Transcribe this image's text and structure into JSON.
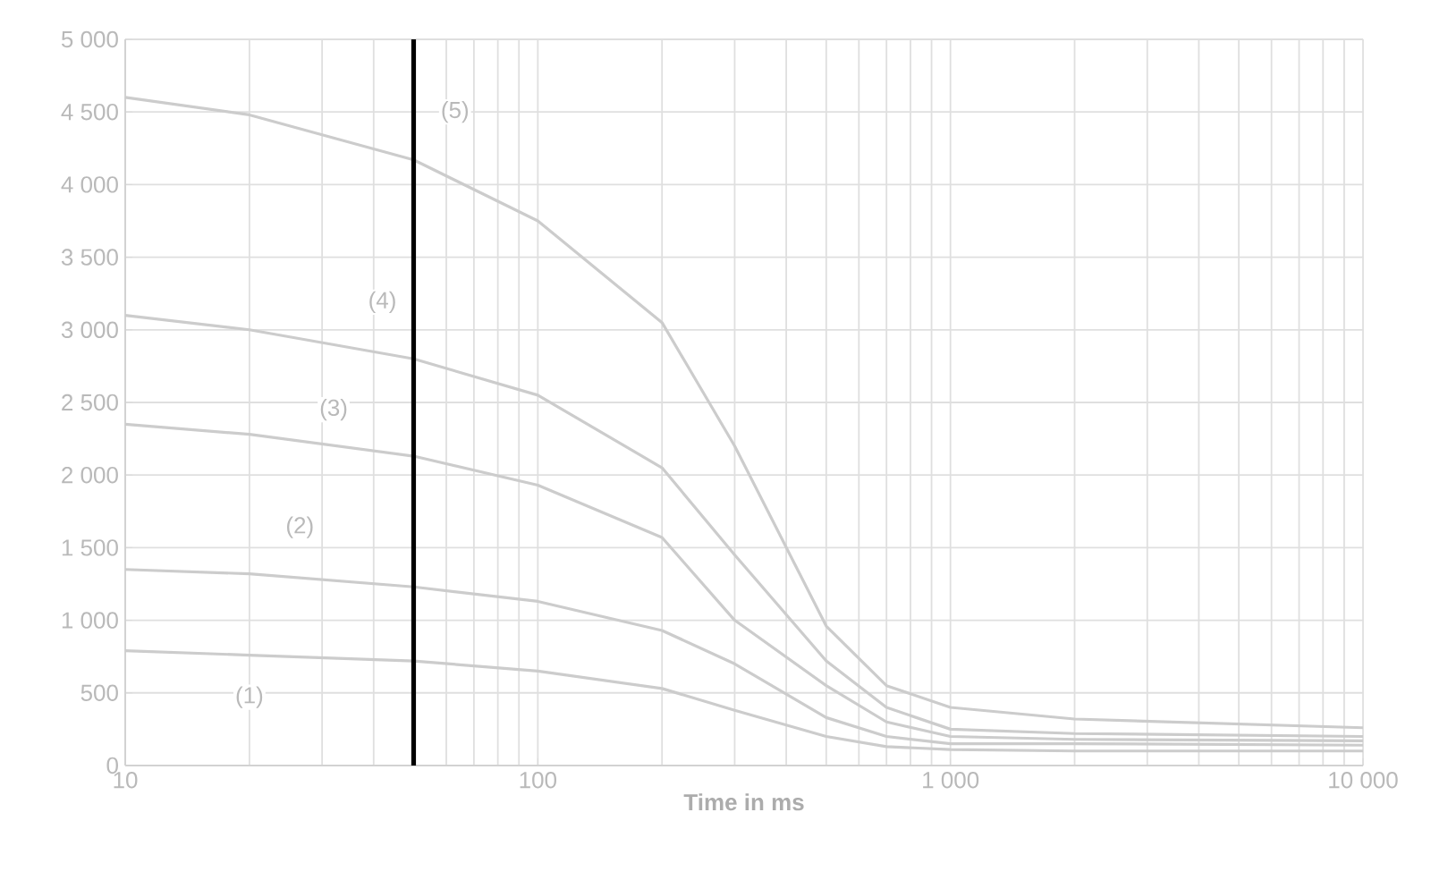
{
  "chart_data": {
    "type": "line",
    "xlabel": "Time in ms",
    "log": "x",
    "grid": true,
    "marker": "none",
    "line_style": "solid",
    "xlim": [
      10,
      10000
    ],
    "ylim": [
      0,
      5000
    ],
    "xticks": [
      10,
      100,
      {
        "value": 1000,
        "label": "1 000"
      },
      {
        "value": 10000,
        "label": "10 000"
      }
    ],
    "yticks": [
      0,
      500,
      {
        "value": 1000,
        "label": "1 000"
      },
      {
        "value": 1500,
        "label": "1 500"
      },
      {
        "value": 2000,
        "label": "2 000"
      },
      {
        "value": 2500,
        "label": "2 500"
      },
      {
        "value": 3000,
        "label": "3 000"
      },
      {
        "value": 3500,
        "label": "3 500"
      },
      {
        "value": 4000,
        "label": "4 000"
      },
      {
        "value": 4500,
        "label": "4 500"
      },
      {
        "value": 5000,
        "label": "5 000"
      }
    ],
    "x": [
      10,
      20,
      50,
      100,
      200,
      300,
      500,
      700,
      1000,
      2000,
      10000
    ],
    "series": [
      {
        "name": "(1)",
        "color": "#cccccc",
        "values": [
          790,
          760,
          720,
          650,
          530,
          380,
          200,
          130,
          110,
          100,
          100
        ]
      },
      {
        "name": "(2)",
        "color": "#cccccc",
        "values": [
          1350,
          1320,
          1230,
          1130,
          930,
          700,
          330,
          200,
          150,
          150,
          140
        ]
      },
      {
        "name": "(3)",
        "color": "#cccccc",
        "values": [
          2350,
          2280,
          2130,
          1930,
          1570,
          1000,
          550,
          300,
          200,
          180,
          170
        ]
      },
      {
        "name": "(4)",
        "color": "#cccccc",
        "values": [
          3100,
          3000,
          2800,
          2550,
          2050,
          1450,
          720,
          400,
          250,
          220,
          200
        ]
      },
      {
        "name": "(5)",
        "color": "#cccccc",
        "values": [
          4600,
          4480,
          4170,
          3750,
          3050,
          2200,
          960,
          550,
          400,
          320,
          260
        ]
      }
    ],
    "ref_lines": [
      {
        "axis": "x",
        "value": 50,
        "color": "#000000"
      }
    ]
  }
}
